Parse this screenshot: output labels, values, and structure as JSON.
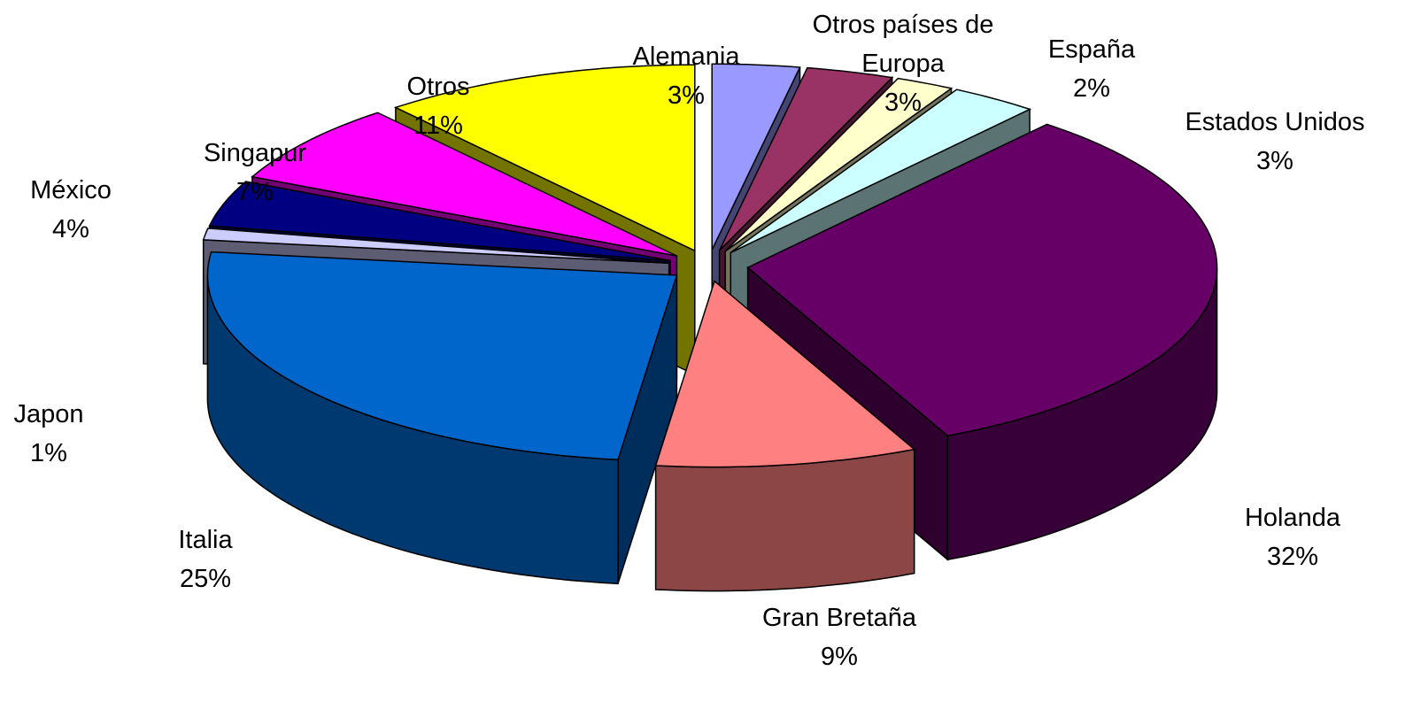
{
  "chart_data": {
    "type": "pie",
    "categories": [
      "Alemania",
      "Otros países de Europa",
      "España",
      "Estados Unidos",
      "Holanda",
      "Gran Bretaña",
      "Italia",
      "Japon",
      "México",
      "Singapur",
      "Otros"
    ],
    "values": [
      3,
      3,
      2,
      3,
      32,
      9,
      25,
      1,
      4,
      7,
      11
    ],
    "value_labels": [
      "3%",
      "3%",
      "2%",
      "3%",
      "32%",
      "9%",
      "25%",
      "1%",
      "4%",
      "7%",
      "11%"
    ],
    "colors": [
      "#9999ff",
      "#993366",
      "#ffffcc",
      "#ccffff",
      "#660066",
      "#ff8080",
      "#0066cc",
      "#ccccff",
      "#000080",
      "#ff00ff",
      "#ffff00"
    ]
  }
}
